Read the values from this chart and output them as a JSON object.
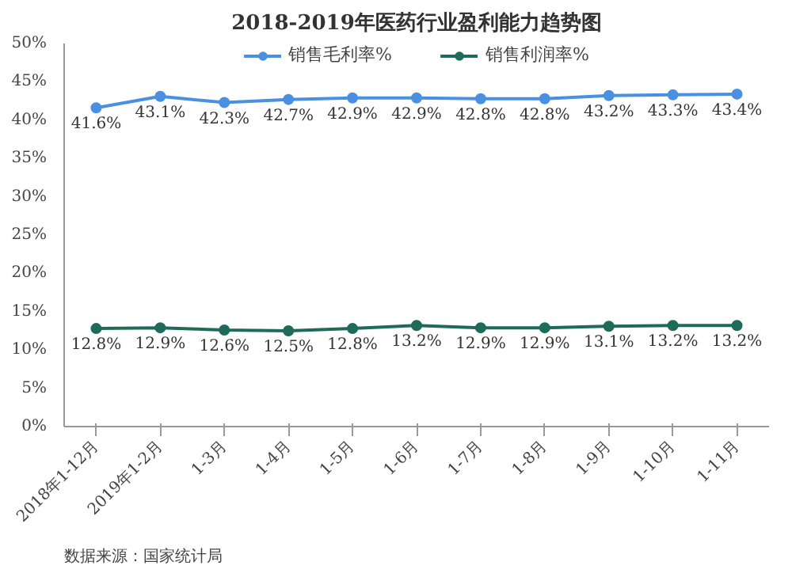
{
  "chart_data": {
    "type": "line",
    "title": "2018-2019年医药行业盈利能力趋势图",
    "categories": [
      "2018年1-12月",
      "2019年1-2月",
      "1-3月",
      "1-4月",
      "1-5月",
      "1-6月",
      "1-7月",
      "1-8月",
      "1-9月",
      "1-10月",
      "1-11月"
    ],
    "series": [
      {
        "name": "销售毛利率%",
        "color": "#4a90e2",
        "values": [
          41.6,
          43.1,
          42.3,
          42.7,
          42.9,
          42.9,
          42.8,
          42.8,
          43.2,
          43.3,
          43.4
        ],
        "value_labels": [
          "41.6%",
          "43.1%",
          "42.3%",
          "42.7%",
          "42.9%",
          "42.9%",
          "42.8%",
          "42.8%",
          "43.2%",
          "43.3%",
          "43.4%"
        ]
      },
      {
        "name": "销售利润率%",
        "color": "#1e6b5c",
        "values": [
          12.8,
          12.9,
          12.6,
          12.5,
          12.8,
          13.2,
          12.9,
          12.9,
          13.1,
          13.2,
          13.2
        ],
        "value_labels": [
          "12.8%",
          "12.9%",
          "12.6%",
          "12.5%",
          "12.8%",
          "13.2%",
          "12.9%",
          "12.9%",
          "13.1%",
          "13.2%",
          "13.2%"
        ]
      }
    ],
    "ylim": [
      0,
      50
    ],
    "yticks": [
      {
        "value": 0,
        "label": "0%"
      },
      {
        "value": 5,
        "label": "5%"
      },
      {
        "value": 10,
        "label": "10%"
      },
      {
        "value": 15,
        "label": "15%"
      },
      {
        "value": 20,
        "label": "20%"
      },
      {
        "value": 25,
        "label": "25%"
      },
      {
        "value": 30,
        "label": "30%"
      },
      {
        "value": 35,
        "label": "35%"
      },
      {
        "value": 40,
        "label": "40%"
      },
      {
        "value": 45,
        "label": "45%"
      },
      {
        "value": 50,
        "label": "50%"
      }
    ],
    "legend": "top",
    "marker": "circle",
    "line_style": "solid",
    "grid": false,
    "annotations": [
      "数据来源：国家统计局"
    ]
  }
}
